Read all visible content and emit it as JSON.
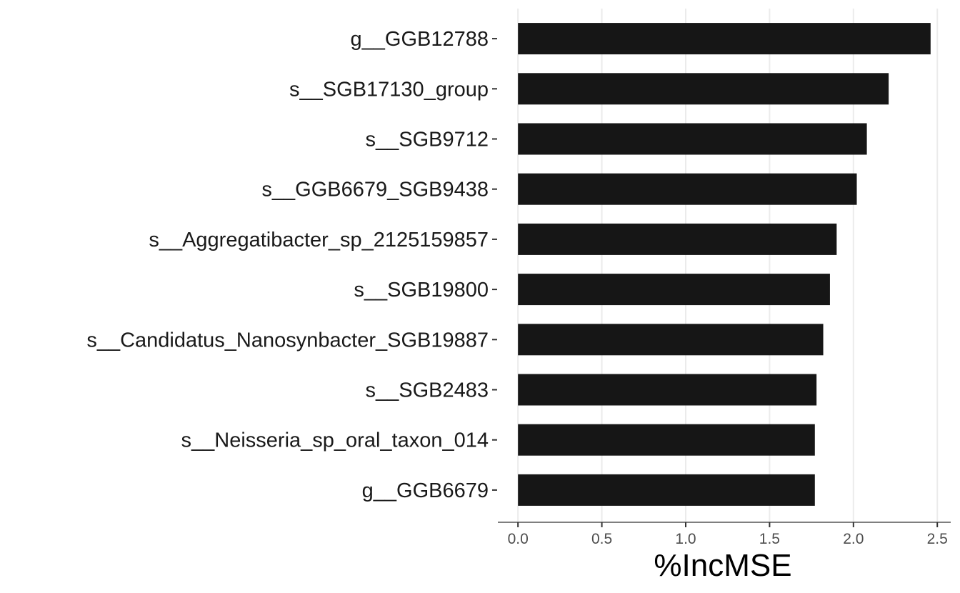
{
  "chart_data": {
    "type": "bar",
    "orientation": "horizontal",
    "categories": [
      "g__GGB12788",
      "s__SGB17130_group",
      "s__SGB9712",
      "s__GGB6679_SGB9438",
      "s__Aggregatibacter_sp_2125159857",
      "s__SGB19800",
      "s__Candidatus_Nanosynbacter_SGB19887",
      "s__SGB2483",
      "s__Neisseria_sp_oral_taxon_014",
      "g__GGB6679"
    ],
    "values": [
      2.46,
      2.21,
      2.08,
      2.02,
      1.9,
      1.86,
      1.82,
      1.78,
      1.77,
      1.77
    ],
    "xlabel": "%IncMSE",
    "ylabel": "",
    "title": "",
    "xlim": [
      -0.12,
      2.58
    ],
    "xticks": [
      "0.0",
      "0.5",
      "1.0",
      "1.5",
      "2.0",
      "2.5"
    ],
    "xtick_values": [
      0,
      0.5,
      1,
      1.5,
      2,
      2.5
    ],
    "grid": "vertical major",
    "legend": "none",
    "colors": {
      "bar": "#161616",
      "grid": "#ebebeb",
      "axis": "#7f7f7f",
      "tick": "#333333"
    }
  }
}
